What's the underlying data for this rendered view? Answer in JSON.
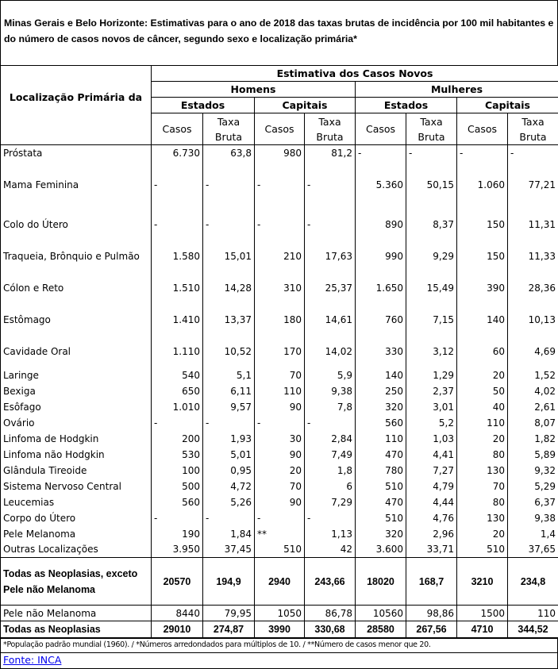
{
  "title": "Minas Gerais e Belo Horizonte: Estimativas para o ano de 2018 das taxas brutas de incidência por 100 mil habitantes e do número de casos novos de câncer, segundo sexo e localização primária*",
  "table": {
    "header": {
      "row_label": "Localização Primária da",
      "group": "Estimativa dos Casos Novos",
      "sexes": [
        "Homens",
        "Mulheres"
      ],
      "regions": [
        "Estados",
        "Capitais",
        "Estados",
        "Capitais"
      ],
      "measures": [
        "Casos",
        "Taxa Bruta",
        "Casos",
        "Taxa Bruta",
        "Casos",
        "Taxa Bruta",
        "Casos",
        "Taxa Bruta"
      ]
    },
    "rows": [
      {
        "label": "Próstata",
        "values": [
          "6.730",
          "63,8",
          "980",
          "81,2",
          "-",
          "-",
          "-",
          "-"
        ]
      },
      {
        "label": "Mama Feminina",
        "values": [
          "-",
          "-",
          "-",
          "-",
          "5.360",
          "50,15",
          "1.060",
          "77,21"
        ]
      },
      {
        "label": "Colo do Útero",
        "values": [
          "-",
          "-",
          "-",
          "-",
          "890",
          "8,37",
          "150",
          "11,31"
        ]
      },
      {
        "label": "Traqueia, Brônquio e Pulmão",
        "values": [
          "1.580",
          "15,01",
          "210",
          "17,63",
          "990",
          "9,29",
          "150",
          "11,33"
        ]
      },
      {
        "label": "Cólon e Reto",
        "values": [
          "1.510",
          "14,28",
          "310",
          "25,37",
          "1.650",
          "15,49",
          "390",
          "28,36"
        ]
      },
      {
        "label": "Estômago",
        "values": [
          "1.410",
          "13,37",
          "180",
          "14,61",
          "760",
          "7,15",
          "140",
          "10,13"
        ]
      },
      {
        "label": "Cavidade Oral",
        "values": [
          "1.110",
          "10,52",
          "170",
          "14,02",
          "330",
          "3,12",
          "60",
          "4,69"
        ]
      },
      {
        "label": "Laringe",
        "values": [
          "540",
          "5,1",
          "70",
          "5,9",
          "140",
          "1,29",
          "20",
          "1,52"
        ]
      },
      {
        "label": "Bexiga",
        "values": [
          "650",
          "6,11",
          "110",
          "9,38",
          "250",
          "2,37",
          "50",
          "4,02"
        ]
      },
      {
        "label": "Esôfago",
        "values": [
          "1.010",
          "9,57",
          "90",
          "7,8",
          "320",
          "3,01",
          "40",
          "2,61"
        ]
      },
      {
        "label": "Ovário",
        "values": [
          "-",
          "-",
          "-",
          "-",
          "560",
          "5,2",
          "110",
          "8,07"
        ]
      },
      {
        "label": "Linfoma de Hodgkin",
        "values": [
          "200",
          "1,93",
          "30",
          "2,84",
          "110",
          "1,03",
          "20",
          "1,82"
        ]
      },
      {
        "label": "Linfoma não Hodgkin",
        "values": [
          "530",
          "5,01",
          "90",
          "7,49",
          "470",
          "4,41",
          "80",
          "5,89"
        ]
      },
      {
        "label": "Glândula Tireoide",
        "values": [
          "100",
          "0,95",
          "20",
          "1,8",
          "780",
          "7,27",
          "130",
          "9,32"
        ]
      },
      {
        "label": "Sistema Nervoso Central",
        "values": [
          "500",
          "4,72",
          "70",
          "6",
          "510",
          "4,79",
          "70",
          "5,29"
        ]
      },
      {
        "label": "Leucemias",
        "values": [
          "560",
          "5,26",
          "90",
          "7,29",
          "470",
          "4,44",
          "80",
          "6,37"
        ]
      },
      {
        "label": "Corpo do Útero",
        "values": [
          "-",
          "-",
          "-",
          "-",
          "510",
          "4,76",
          "130",
          "9,38"
        ]
      },
      {
        "label": "Pele Melanoma",
        "values": [
          "190",
          "1,84",
          "**",
          "1,13",
          "320",
          "2,96",
          "20",
          "1,4"
        ]
      },
      {
        "label": "Outras Localizações",
        "values": [
          "3.950",
          "37,45",
          "510",
          "42",
          "3.600",
          "33,71",
          "510",
          "37,65"
        ]
      },
      {
        "label": "Todas as Neoplasias, exceto Pele não Melanoma",
        "values": [
          "20570",
          "194,9",
          "2940",
          "243,66",
          "18020",
          "168,7",
          "3210",
          "234,8"
        ]
      },
      {
        "label": "Pele não Melanoma",
        "values": [
          "8440",
          "79,95",
          "1050",
          "86,78",
          "10560",
          "98,86",
          "1500",
          "110"
        ]
      },
      {
        "label": "Todas as Neoplasias",
        "values": [
          "29010",
          "274,87",
          "3990",
          "330,68",
          "28580",
          "267,56",
          "4710",
          "344,52"
        ]
      }
    ]
  },
  "footnote": "*População padrão mundial (1960). / *Números arredondados para múltiplos de 10. / **Número de casos menor que 20.",
  "source": "Fonte: INCA"
}
